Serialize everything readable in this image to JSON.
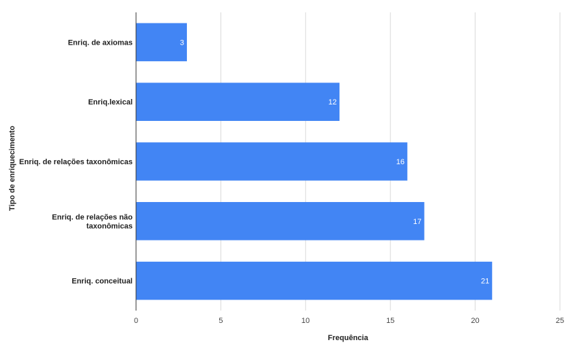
{
  "chart_data": {
    "type": "bar",
    "orientation": "horizontal",
    "categories": [
      [
        "Enriq. de axiomas"
      ],
      [
        "Enriq.lexical"
      ],
      [
        "Enriq. de relações taxonômicas"
      ],
      [
        "Enriq. de relações não",
        "taxonômicas"
      ],
      [
        "Enriq. conceitual"
      ]
    ],
    "values": [
      3,
      12,
      16,
      17,
      21
    ],
    "data_labels": [
      "3",
      "12",
      "16",
      "17",
      "21"
    ],
    "xlabel": "Frequência",
    "ylabel": "Tipo de enriquecimento",
    "xlim": [
      0,
      25
    ],
    "xticks": [
      "0",
      "5",
      "10",
      "15",
      "20",
      "25"
    ],
    "grid": true,
    "bar_color": "#4285f4",
    "grid_color": "#d9d9d9",
    "axis_color": "#333333"
  }
}
